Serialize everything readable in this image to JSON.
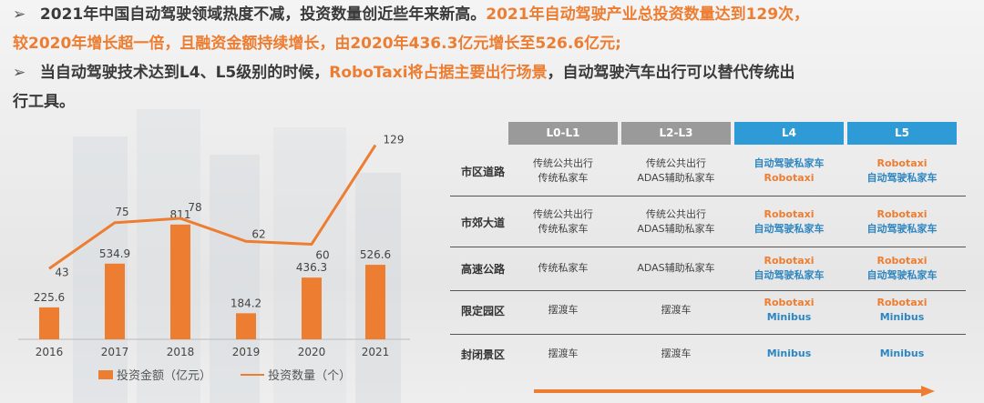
{
  "bullets": {
    "b1_part1": "2021年中国自动驾驶领域热度不减，投资数量创近些年来新高。",
    "b1_part2": "2021年自动驾驶产业总投资数量达到129次，",
    "b1_line2": "较2020年增长超一倍，且融资金额持续增长，由2020年436.3亿元增长至526.6亿元;",
    "b2_part1": "当自动驾驶技术达到L4、L5级别的时候，",
    "b2_part2": "RoboTaxi将占据主要出行场景",
    "b2_part3": "，自动驾驶汽车出行可以替代传统出",
    "b2_line2": "行工具。"
  },
  "chart_data": {
    "type": "bar",
    "categories": [
      "2016",
      "2017",
      "2018",
      "2019",
      "2020",
      "2021"
    ],
    "series": [
      {
        "name": "投资金额（亿元）",
        "type": "bar",
        "values": [
          225.6,
          534.9,
          811,
          184.2,
          436.3,
          526.6
        ]
      },
      {
        "name": "投资数量（个）",
        "type": "line",
        "values": [
          43,
          75,
          78,
          62,
          60,
          129
        ]
      }
    ],
    "legend_position": "bottom",
    "bar_labels": [
      "225.6",
      "534.9",
      "811",
      "184.2",
      "436.3",
      "526.6"
    ],
    "line_labels": [
      "43",
      "75",
      "78",
      "62",
      "60",
      "129"
    ],
    "colors": {
      "bar": "#ed7d31",
      "line": "#ed7d31"
    }
  },
  "table": {
    "columns": [
      "L0-L1",
      "L2-L3",
      "L4",
      "L5"
    ],
    "rows": [
      {
        "label": "市区道路",
        "cells": [
          [
            "传统公共出行",
            "传统私家车"
          ],
          [
            "传统公共出行",
            "ADAS辅助私家车"
          ],
          [
            "自动驾驶私家车",
            "Robotaxi"
          ],
          [
            "Robotaxi",
            "自动驾驶私家车"
          ]
        ]
      },
      {
        "label": "市郊大道",
        "cells": [
          [
            "传统公共出行",
            "传统私家车"
          ],
          [
            "传统公共出行",
            "ADAS辅助私家车"
          ],
          [
            "Robotaxi",
            "自动驾驶私家车"
          ],
          [
            "Robotaxi",
            "自动驾驶私家车"
          ]
        ]
      },
      {
        "label": "高速公路",
        "cells": [
          [
            "传统私家车"
          ],
          [
            "ADAS辅助私家车"
          ],
          [
            "Robotaxi",
            "自动驾驶私家车"
          ],
          [
            "Robotaxi",
            "自动驾驶私家车"
          ]
        ]
      },
      {
        "label": "限定园区",
        "cells": [
          [
            "摆渡车"
          ],
          [
            "摆渡车"
          ],
          [
            "Robotaxi",
            "Minibus"
          ],
          [
            "Robotaxi",
            "Minibus"
          ]
        ]
      },
      {
        "label": "封闭景区",
        "cells": [
          [
            "摆渡车"
          ],
          [
            "摆渡车"
          ],
          [
            "Minibus"
          ],
          [
            "Minibus"
          ]
        ]
      }
    ]
  },
  "colors": {
    "accent": "#ed7d31",
    "l4l5": "#2e9bd6",
    "gray_header": "#9a9a9a"
  }
}
